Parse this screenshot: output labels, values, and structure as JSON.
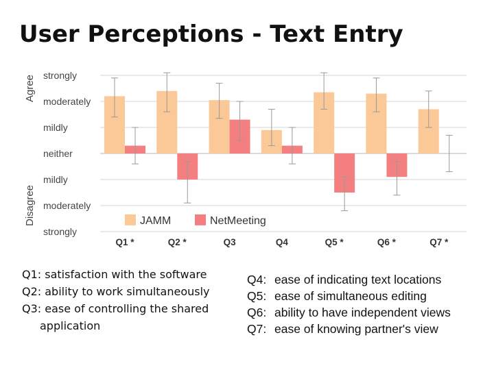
{
  "title": "User Perceptions - Text Entry",
  "chart_data": {
    "type": "bar",
    "categories": [
      "Q1 *",
      "Q2 *",
      "Q3",
      "Q4",
      "Q5 *",
      "Q6 *",
      "Q7 *"
    ],
    "y_tick_labels": [
      "strongly",
      "moderately",
      "mildly",
      "neither",
      "mildly",
      "moderately",
      "strongly"
    ],
    "y_group_labels": {
      "top": "Agree",
      "bottom": "Disagree"
    },
    "ylim": [
      -3,
      3
    ],
    "grid": true,
    "legend_position": "bottom-center",
    "series": [
      {
        "name": "JAMM",
        "color": "#fbc997",
        "values": [
          2.2,
          2.4,
          2.05,
          0.9,
          2.35,
          2.3,
          1.7
        ],
        "err_low": [
          1.4,
          1.6,
          1.35,
          0.3,
          1.7,
          1.6,
          1.0
        ],
        "err_high": [
          2.9,
          3.1,
          2.7,
          1.7,
          3.1,
          2.9,
          2.4
        ]
      },
      {
        "name": "NetMeeting",
        "color": "#f47f81",
        "values": [
          0.3,
          -1.0,
          1.3,
          0.3,
          -1.5,
          -0.9,
          null
        ],
        "err_low": [
          -0.4,
          -1.9,
          0.5,
          -0.4,
          -2.2,
          -1.6,
          -0.7
        ],
        "err_high": [
          1.0,
          -0.3,
          2.0,
          1.0,
          -0.9,
          -0.3,
          0.7
        ]
      }
    ]
  },
  "notes_left": [
    "Q1: satisfaction with the software",
    "Q2: ability to work simultaneously",
    "Q3: ease of controlling the shared",
    "application"
  ],
  "notes_right": [
    {
      "id": "Q4:",
      "text": "ease of indicating text locations"
    },
    {
      "id": "Q5:",
      "text": "ease of simultaneous editing"
    },
    {
      "id": "Q6:",
      "text": "ability to have independent views"
    },
    {
      "id": "Q7:",
      "text": "ease of knowing partner's view"
    }
  ]
}
